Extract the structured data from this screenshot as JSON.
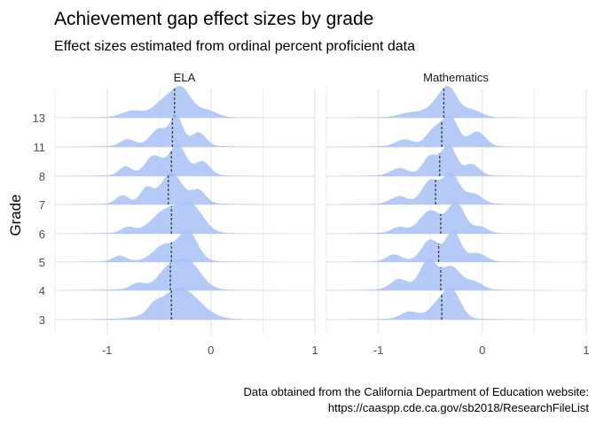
{
  "chart_data": {
    "type": "ridgeline",
    "title": "Achievement gap effect sizes by grade",
    "subtitle": "Effect sizes estimated from ordinal percent proficient data",
    "ylabel": "Grade",
    "xlabel": "",
    "caption_lines": [
      "Data obtained from the California Department of Education website:",
      "https://caaspp.cde.ca.gov/sb2018/ResearchFileList"
    ],
    "grades": [
      "3",
      "4",
      "5",
      "6",
      "7",
      "8",
      "11",
      "13"
    ],
    "x_ticks": [
      -1,
      0,
      1
    ],
    "x_tick_labels": [
      "-1",
      "0",
      "1"
    ],
    "xlim": [
      -1.5,
      1.0
    ],
    "grid": true,
    "fill_color": "#a8c1f5",
    "median_color": "#404040",
    "panels": [
      {
        "name": "ELA",
        "medians": {
          "3": -0.38,
          "4": -0.39,
          "5": -0.38,
          "6": -0.38,
          "7": -0.41,
          "8": -0.38,
          "11": -0.37,
          "13": -0.35
        },
        "peaks": {
          "3": [
            [
              -0.55,
              0.05,
              0.18
            ],
            [
              -0.3,
              0.18,
              1.0
            ]
          ],
          "4": [
            [
              -0.7,
              0.07,
              0.2
            ],
            [
              -0.42,
              0.1,
              0.55
            ],
            [
              -0.22,
              0.12,
              0.9
            ]
          ],
          "5": [
            [
              -0.88,
              0.06,
              0.18
            ],
            [
              -0.45,
              0.1,
              0.5
            ],
            [
              -0.22,
              0.09,
              0.95
            ]
          ],
          "6": [
            [
              -0.8,
              0.06,
              0.18
            ],
            [
              -0.42,
              0.14,
              0.75
            ],
            [
              -0.18,
              0.11,
              0.8
            ]
          ],
          "7": [
            [
              -0.85,
              0.06,
              0.25
            ],
            [
              -0.62,
              0.06,
              0.45
            ],
            [
              -0.38,
              0.1,
              0.92
            ],
            [
              -0.12,
              0.07,
              0.4
            ]
          ],
          "8": [
            [
              -0.82,
              0.06,
              0.25
            ],
            [
              -0.55,
              0.08,
              0.55
            ],
            [
              -0.32,
              0.08,
              0.88
            ],
            [
              -0.08,
              0.07,
              0.4
            ]
          ],
          "11": [
            [
              -0.8,
              0.07,
              0.22
            ],
            [
              -0.5,
              0.08,
              0.55
            ],
            [
              -0.33,
              0.06,
              0.95
            ],
            [
              -0.12,
              0.07,
              0.45
            ]
          ],
          "13": [
            [
              -0.75,
              0.1,
              0.22
            ],
            [
              -0.45,
              0.1,
              0.55
            ],
            [
              -0.28,
              0.09,
              0.95
            ],
            [
              -0.05,
              0.1,
              0.25
            ]
          ]
        }
      },
      {
        "name": "Mathematics",
        "medians": {
          "3": -0.39,
          "4": -0.4,
          "5": -0.42,
          "6": -0.4,
          "7": -0.45,
          "8": -0.41,
          "11": -0.39,
          "13": -0.37
        },
        "peaks": {
          "3": [
            [
              -0.7,
              0.08,
              0.3
            ],
            [
              -0.4,
              0.1,
              0.7
            ],
            [
              -0.28,
              0.08,
              0.92
            ]
          ],
          "4": [
            [
              -0.8,
              0.08,
              0.3
            ],
            [
              -0.52,
              0.08,
              0.85
            ],
            [
              -0.3,
              0.09,
              0.65
            ],
            [
              -0.08,
              0.08,
              0.22
            ]
          ],
          "5": [
            [
              -0.85,
              0.07,
              0.2
            ],
            [
              -0.5,
              0.08,
              0.65
            ],
            [
              -0.28,
              0.07,
              0.92
            ],
            [
              -0.05,
              0.08,
              0.25
            ]
          ],
          "6": [
            [
              -0.8,
              0.07,
              0.18
            ],
            [
              -0.5,
              0.1,
              0.7
            ],
            [
              -0.25,
              0.08,
              0.95
            ],
            [
              -0.02,
              0.07,
              0.2
            ]
          ],
          "7": [
            [
              -0.8,
              0.08,
              0.22
            ],
            [
              -0.5,
              0.08,
              0.7
            ],
            [
              -0.3,
              0.08,
              0.92
            ],
            [
              -0.08,
              0.08,
              0.3
            ]
          ],
          "8": [
            [
              -0.8,
              0.08,
              0.22
            ],
            [
              -0.5,
              0.07,
              0.6
            ],
            [
              -0.32,
              0.07,
              0.95
            ],
            [
              -0.1,
              0.07,
              0.35
            ]
          ],
          "11": [
            [
              -0.75,
              0.08,
              0.22
            ],
            [
              -0.45,
              0.08,
              0.6
            ],
            [
              -0.3,
              0.07,
              0.92
            ],
            [
              -0.05,
              0.08,
              0.5
            ]
          ],
          "13": [
            [
              -0.7,
              0.1,
              0.2
            ],
            [
              -0.4,
              0.12,
              0.7
            ],
            [
              -0.32,
              0.08,
              0.95
            ],
            [
              -0.1,
              0.09,
              0.35
            ]
          ]
        }
      }
    ]
  }
}
